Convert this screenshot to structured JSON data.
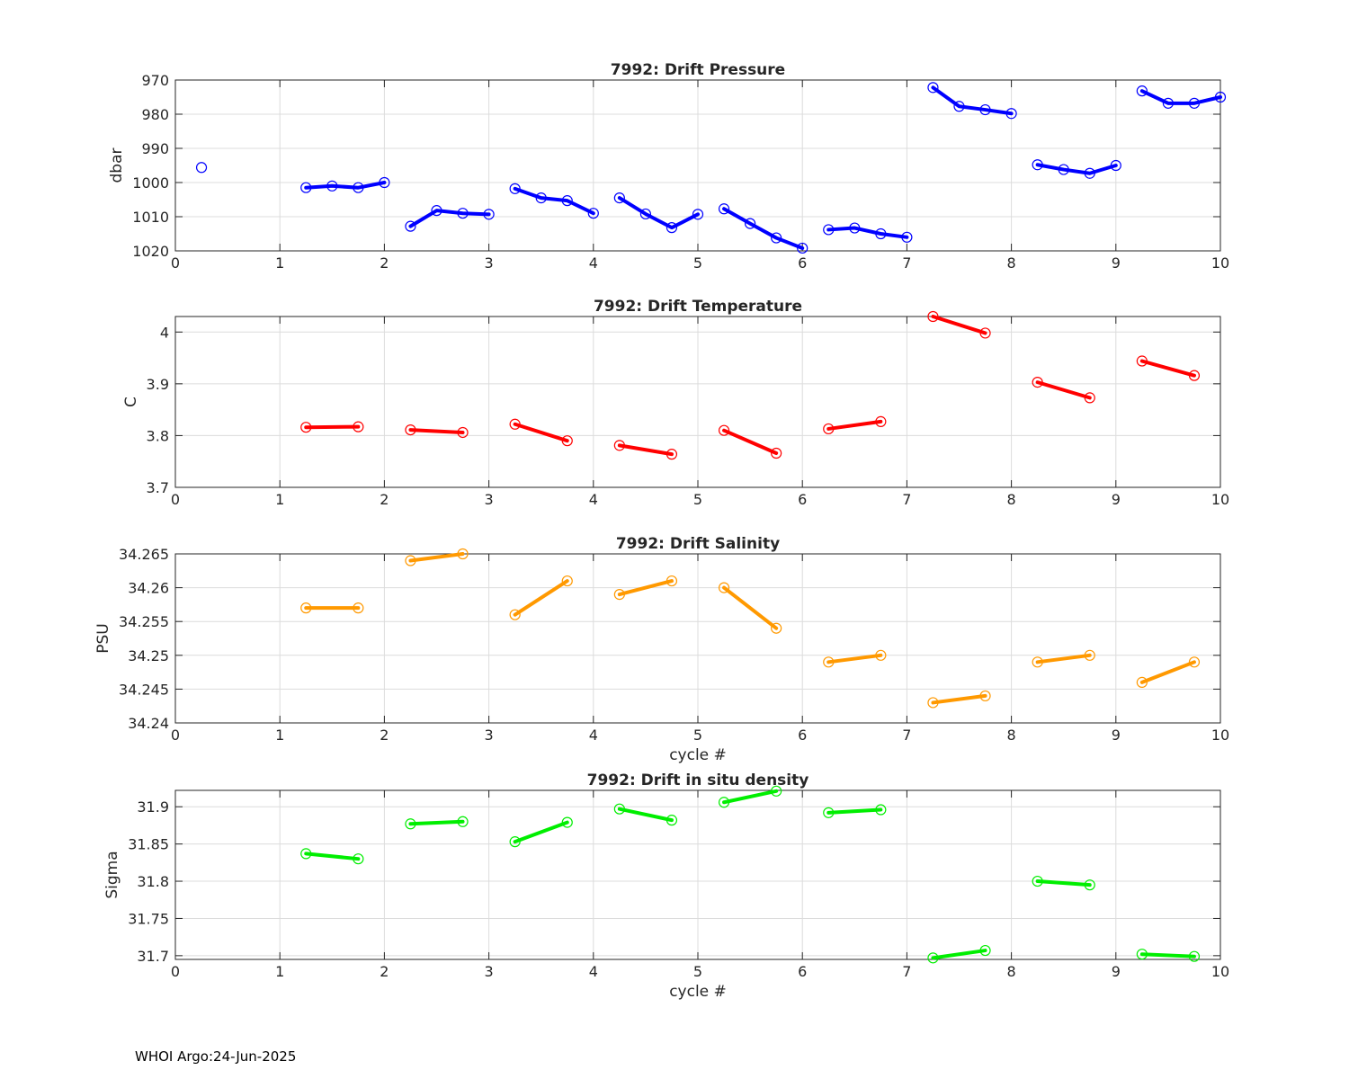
{
  "footer": "WHOI Argo:24-Jun-2025",
  "chart_data": [
    {
      "type": "line",
      "title": "7992: Drift Pressure",
      "xlabel": "",
      "ylabel": "dbar",
      "xlim": [
        0,
        10
      ],
      "ylim": [
        970,
        1020
      ],
      "y_reversed": true,
      "xticks": [
        0,
        1,
        2,
        3,
        4,
        5,
        6,
        7,
        8,
        9,
        10
      ],
      "yticks": [
        970,
        980,
        990,
        1000,
        1010,
        1020
      ],
      "ytick_labels": [
        "970",
        "980",
        "990",
        "1000",
        "1010",
        "1020"
      ],
      "grid": true,
      "color": "#0000ff",
      "segments": [
        {
          "x": [
            0.25
          ],
          "y": [
            995.6
          ]
        },
        {
          "x": [
            1.25,
            1.5,
            1.75,
            2.0
          ],
          "y": [
            1001.5,
            1001.0,
            1001.5,
            1000.0
          ]
        },
        {
          "x": [
            2.25,
            2.5,
            2.75,
            3.0
          ],
          "y": [
            1012.8,
            1008.2,
            1009.0,
            1009.3
          ]
        },
        {
          "x": [
            3.25,
            3.5,
            3.75,
            4.0
          ],
          "y": [
            1001.8,
            1004.5,
            1005.3,
            1009.0
          ]
        },
        {
          "x": [
            4.25,
            4.5,
            4.75,
            5.0
          ],
          "y": [
            1004.5,
            1009.2,
            1013.2,
            1009.3
          ]
        },
        {
          "x": [
            5.25,
            5.5,
            5.75,
            6.0
          ],
          "y": [
            1007.7,
            1012.0,
            1016.2,
            1019.2
          ]
        },
        {
          "x": [
            6.25,
            6.5,
            6.75,
            7.0
          ],
          "y": [
            1013.8,
            1013.3,
            1015.0,
            1016.0
          ]
        },
        {
          "x": [
            7.25,
            7.5,
            7.75,
            8.0
          ],
          "y": [
            972.2,
            977.7,
            978.7,
            979.8
          ]
        },
        {
          "x": [
            8.25,
            8.5,
            8.75,
            9.0
          ],
          "y": [
            994.8,
            996.2,
            997.3,
            995.0
          ]
        },
        {
          "x": [
            9.25,
            9.5,
            9.75,
            10.0
          ],
          "y": [
            973.2,
            976.8,
            976.8,
            975.0
          ]
        }
      ]
    },
    {
      "type": "line",
      "title": "7992: Drift Temperature",
      "xlabel": "",
      "ylabel": "C",
      "xlim": [
        0,
        10
      ],
      "ylim": [
        3.7,
        4.03
      ],
      "y_reversed": false,
      "xticks": [
        0,
        1,
        2,
        3,
        4,
        5,
        6,
        7,
        8,
        9,
        10
      ],
      "yticks": [
        3.7,
        3.8,
        3.9,
        4.0
      ],
      "ytick_labels": [
        "3.7",
        "3.8",
        "3.9",
        "4"
      ],
      "grid": true,
      "color": "#ff0000",
      "segments": [
        {
          "x": [
            1.25,
            1.75
          ],
          "y": [
            3.816,
            3.817
          ]
        },
        {
          "x": [
            2.25,
            2.75
          ],
          "y": [
            3.811,
            3.806
          ]
        },
        {
          "x": [
            3.25,
            3.75
          ],
          "y": [
            3.822,
            3.79
          ]
        },
        {
          "x": [
            4.25,
            4.75
          ],
          "y": [
            3.781,
            3.764
          ]
        },
        {
          "x": [
            5.25,
            5.75
          ],
          "y": [
            3.81,
            3.766
          ]
        },
        {
          "x": [
            6.25,
            6.75
          ],
          "y": [
            3.813,
            3.827
          ]
        },
        {
          "x": [
            7.25,
            7.75
          ],
          "y": [
            4.03,
            3.998
          ]
        },
        {
          "x": [
            8.25,
            8.75
          ],
          "y": [
            3.903,
            3.873
          ]
        },
        {
          "x": [
            9.25,
            9.75
          ],
          "y": [
            3.944,
            3.916
          ]
        }
      ]
    },
    {
      "type": "line",
      "title": "7992: Drift Salinity",
      "xlabel": "cycle #",
      "ylabel": "PSU",
      "xlim": [
        0,
        10
      ],
      "ylim": [
        34.24,
        34.265
      ],
      "y_reversed": false,
      "xticks": [
        0,
        1,
        2,
        3,
        4,
        5,
        6,
        7,
        8,
        9,
        10
      ],
      "yticks": [
        34.24,
        34.245,
        34.25,
        34.255,
        34.26,
        34.265
      ],
      "ytick_labels": [
        "34.24",
        "34.245",
        "34.25",
        "34.255",
        "34.26",
        "34.265"
      ],
      "grid": true,
      "color": "#ff9900",
      "segments": [
        {
          "x": [
            1.25,
            1.75
          ],
          "y": [
            34.257,
            34.257
          ]
        },
        {
          "x": [
            2.25,
            2.75
          ],
          "y": [
            34.264,
            34.265
          ]
        },
        {
          "x": [
            3.25,
            3.75
          ],
          "y": [
            34.256,
            34.261
          ]
        },
        {
          "x": [
            4.25,
            4.75
          ],
          "y": [
            34.259,
            34.261
          ]
        },
        {
          "x": [
            5.25,
            5.75
          ],
          "y": [
            34.26,
            34.254
          ]
        },
        {
          "x": [
            6.25,
            6.75
          ],
          "y": [
            34.249,
            34.25
          ]
        },
        {
          "x": [
            7.25,
            7.75
          ],
          "y": [
            34.243,
            34.244
          ]
        },
        {
          "x": [
            8.25,
            8.75
          ],
          "y": [
            34.249,
            34.25
          ]
        },
        {
          "x": [
            9.25,
            9.75
          ],
          "y": [
            34.246,
            34.249
          ]
        }
      ]
    },
    {
      "type": "line",
      "title": "7992: Drift in situ density",
      "xlabel": "cycle #",
      "ylabel": "Sigma",
      "xlim": [
        0,
        10
      ],
      "ylim": [
        31.695,
        31.922
      ],
      "y_reversed": false,
      "xticks": [
        0,
        1,
        2,
        3,
        4,
        5,
        6,
        7,
        8,
        9,
        10
      ],
      "yticks": [
        31.7,
        31.75,
        31.8,
        31.85,
        31.9
      ],
      "ytick_labels": [
        "31.7",
        "31.75",
        "31.8",
        "31.85",
        "31.9"
      ],
      "grid": true,
      "color": "#00ee00",
      "segments": [
        {
          "x": [
            1.25,
            1.75
          ],
          "y": [
            31.837,
            31.83
          ]
        },
        {
          "x": [
            2.25,
            2.75
          ],
          "y": [
            31.877,
            31.88
          ]
        },
        {
          "x": [
            3.25,
            3.75
          ],
          "y": [
            31.853,
            31.879
          ]
        },
        {
          "x": [
            4.25,
            4.75
          ],
          "y": [
            31.897,
            31.882
          ]
        },
        {
          "x": [
            5.25,
            5.75
          ],
          "y": [
            31.906,
            31.921
          ]
        },
        {
          "x": [
            6.25,
            6.75
          ],
          "y": [
            31.892,
            31.896
          ]
        },
        {
          "x": [
            7.25,
            7.75
          ],
          "y": [
            31.697,
            31.707
          ]
        },
        {
          "x": [
            8.25,
            8.75
          ],
          "y": [
            31.8,
            31.795
          ]
        },
        {
          "x": [
            9.25,
            9.75
          ],
          "y": [
            31.702,
            31.699
          ]
        }
      ]
    }
  ]
}
